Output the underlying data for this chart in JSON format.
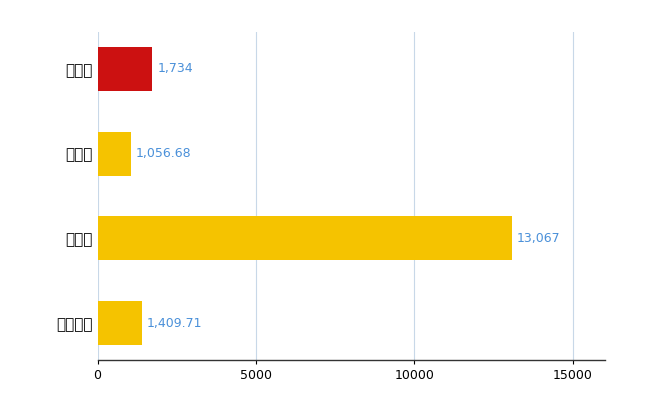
{
  "categories": [
    "石巻市",
    "県平均",
    "県最大",
    "全国平均"
  ],
  "values": [
    1734,
    1056.68,
    13067,
    1409.71
  ],
  "labels": [
    "1,734",
    "1,056.68",
    "13,067",
    "1,409.71"
  ],
  "bar_colors": [
    "#cc1111",
    "#f5c300",
    "#f5c300",
    "#f5c300"
  ],
  "xlim": [
    0,
    16000
  ],
  "xticks": [
    0,
    5000,
    10000,
    15000
  ],
  "background_color": "#ffffff",
  "grid_color": "#c8d8e8",
  "label_color": "#4a90d9",
  "label_fontsize": 9,
  "tick_fontsize": 9,
  "ytick_fontsize": 11
}
